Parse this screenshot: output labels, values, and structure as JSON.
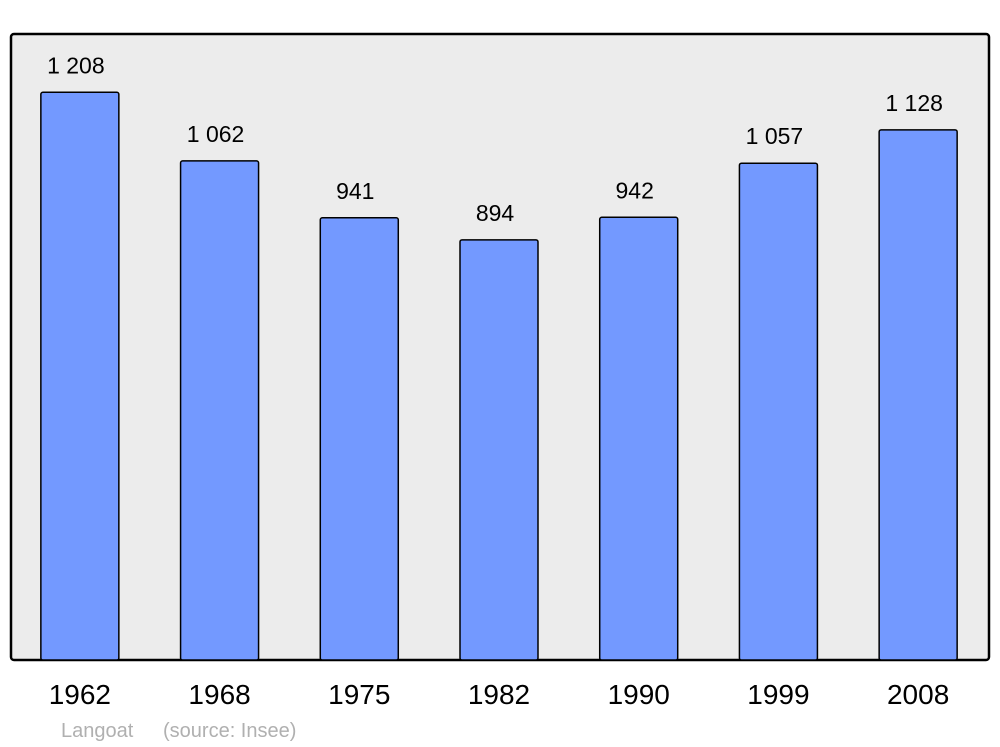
{
  "chart_data": {
    "type": "bar",
    "categories": [
      "1962",
      "1968",
      "1975",
      "1982",
      "1990",
      "1999",
      "2008"
    ],
    "values": [
      1208,
      1062,
      941,
      894,
      942,
      1057,
      1128
    ],
    "value_labels": [
      "1 208",
      "1 062",
      "941",
      "894",
      "942",
      "1 057",
      "1 128"
    ],
    "title": "",
    "xlabel": "",
    "ylabel": "",
    "ylim": [
      0,
      1332
    ],
    "grid": false,
    "colors": {
      "bar": "#7399ff",
      "plot_background": "#ececec",
      "border": "#000000",
      "footer_text": "#b0b0b0"
    }
  },
  "footer": {
    "place": "Langoat",
    "source": "(source: Insee)"
  }
}
